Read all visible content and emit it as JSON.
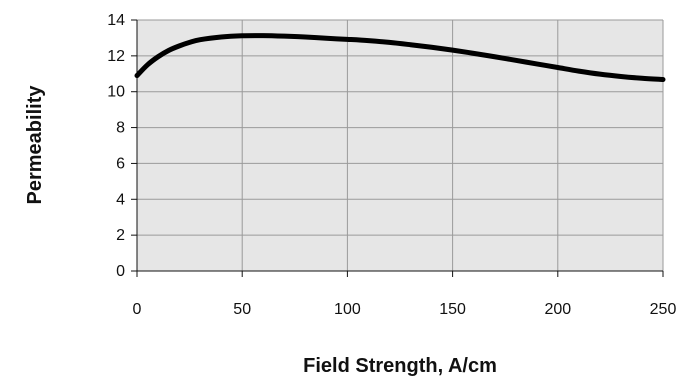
{
  "chart_data": {
    "type": "line",
    "title": "",
    "xlabel": "Field Strength, A/cm",
    "ylabel": "Permeability",
    "xlim": [
      0,
      250
    ],
    "ylim": [
      0,
      14
    ],
    "xticks": [
      0,
      50,
      100,
      150,
      200,
      250
    ],
    "yticks": [
      0,
      2,
      4,
      6,
      8,
      10,
      12,
      14
    ],
    "xtick_labels": [
      "0",
      "50",
      "100",
      "150",
      "200",
      "250"
    ],
    "ytick_labels": [
      "0",
      "2",
      "4",
      "6",
      "8",
      "10",
      "12",
      "14"
    ],
    "grid": true,
    "legend": "none",
    "series": [
      {
        "x": [
          0,
          5,
          10,
          15,
          20,
          25,
          30,
          40,
          50,
          60,
          70,
          80,
          90,
          100,
          110,
          120,
          130,
          140,
          150,
          160,
          170,
          180,
          190,
          200,
          210,
          220,
          230,
          240,
          250
        ],
        "y": [
          10.9,
          11.5,
          11.95,
          12.3,
          12.55,
          12.75,
          12.9,
          13.05,
          13.12,
          13.13,
          13.1,
          13.05,
          12.98,
          12.92,
          12.85,
          12.75,
          12.62,
          12.48,
          12.32,
          12.14,
          11.95,
          11.75,
          11.55,
          11.35,
          11.15,
          10.98,
          10.85,
          10.75,
          10.68
        ],
        "color": "#000000"
      }
    ],
    "plot_background": "#e6e6e6",
    "grid_color": "#9a9a9a"
  }
}
